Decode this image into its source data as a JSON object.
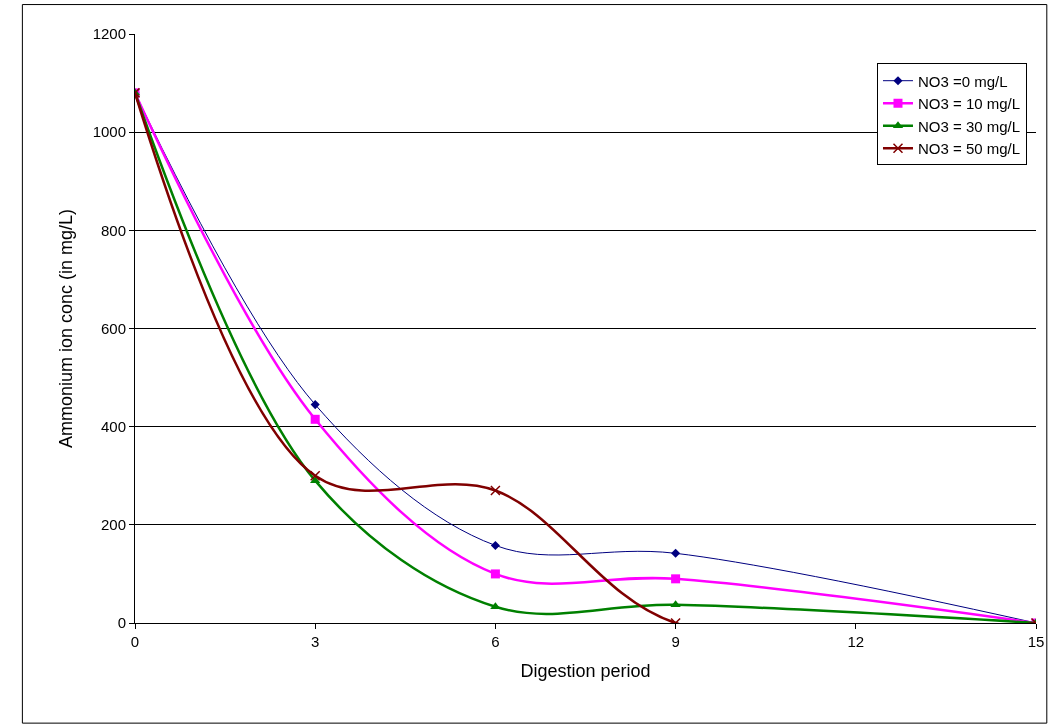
{
  "chart_data": {
    "type": "line",
    "xlabel": "Digestion period",
    "ylabel": "Ammonium ion conc (in mg/L)",
    "x": [
      0,
      3,
      6,
      9,
      15
    ],
    "series": [
      {
        "name": "NO3 =0 mg/L",
        "color": "#000080",
        "marker": "diamond",
        "values": [
          1080,
          445,
          158,
          142,
          0
        ]
      },
      {
        "name": "NO3 = 10 mg/L",
        "color": "#ff00ff",
        "marker": "square",
        "values": [
          1080,
          415,
          100,
          90,
          0
        ]
      },
      {
        "name": "NO3 = 30 mg/L",
        "color": "#008000",
        "marker": "triangle",
        "values": [
          1080,
          290,
          33,
          37,
          0
        ]
      },
      {
        "name": "NO3 = 50 mg/L",
        "color": "#800000",
        "marker": "cross",
        "values": [
          1080,
          300,
          270,
          0,
          0
        ]
      }
    ],
    "xlim": [
      0,
      15
    ],
    "xticks": [
      0,
      3,
      6,
      9,
      12,
      15
    ],
    "ylim": [
      0,
      1200
    ],
    "yticks": [
      0,
      200,
      400,
      600,
      800,
      1000,
      1200
    ],
    "grid": "y",
    "legend": "top right"
  }
}
